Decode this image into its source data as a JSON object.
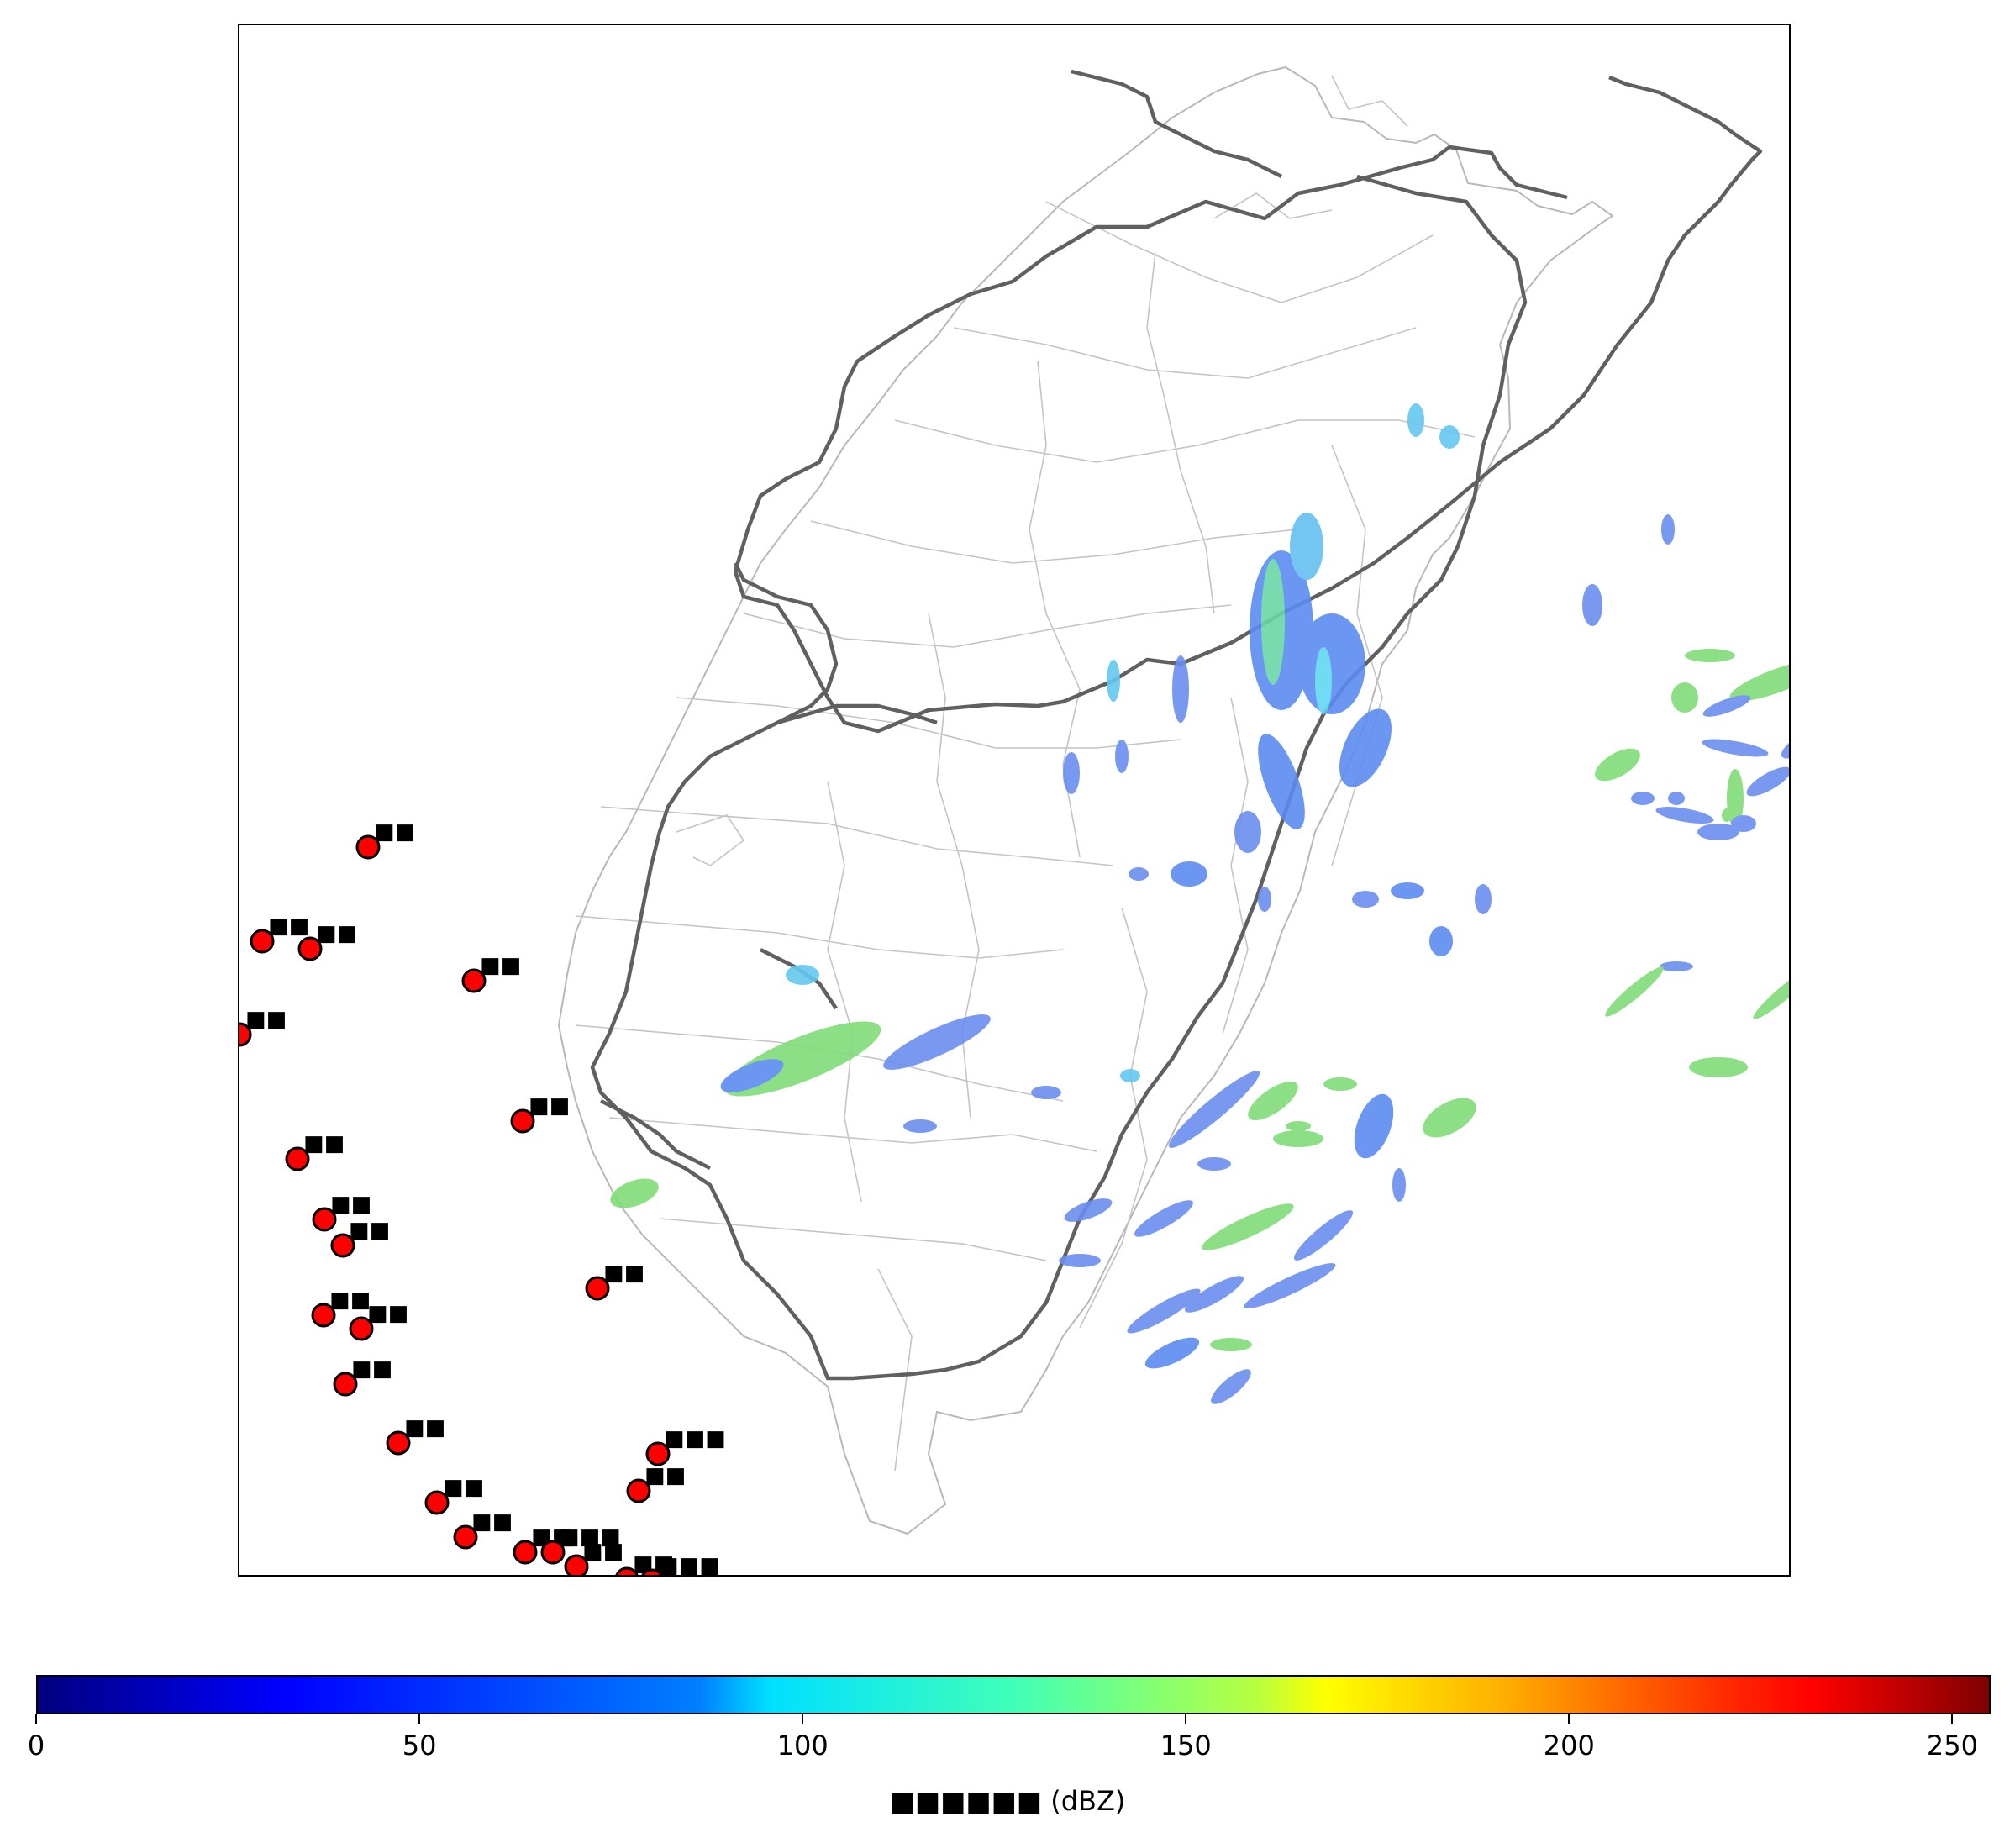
{
  "map": {
    "markers": [
      {
        "label": "■■"
      },
      {
        "label": "■■"
      },
      {
        "label": "■■"
      },
      {
        "label": "■■"
      },
      {
        "label": "■■"
      },
      {
        "label": "■■"
      },
      {
        "label": "■■"
      },
      {
        "label": "■■"
      },
      {
        "label": "■■"
      },
      {
        "label": "■■"
      },
      {
        "label": "■■"
      },
      {
        "label": "■■"
      },
      {
        "label": "■■"
      },
      {
        "label": "■■"
      },
      {
        "label": "■■■"
      },
      {
        "label": "■■"
      },
      {
        "label": "■■"
      },
      {
        "label": "■■"
      },
      {
        "label": "■■"
      },
      {
        "label": "■■■"
      },
      {
        "label": "■■"
      },
      {
        "label": "■■"
      },
      {
        "label": "■■■"
      }
    ],
    "marker_color": "#ff0000",
    "road_color": "#555555",
    "boundary_color": "#b0b0b0"
  },
  "colorbar": {
    "title": "■■■■■■ (dBZ)",
    "colormap": "jet",
    "ticks": [
      "0",
      "50",
      "100",
      "150",
      "200",
      "250"
    ],
    "tick_values": [
      0,
      50,
      100,
      150,
      200,
      250
    ],
    "range": [
      0,
      255
    ]
  }
}
